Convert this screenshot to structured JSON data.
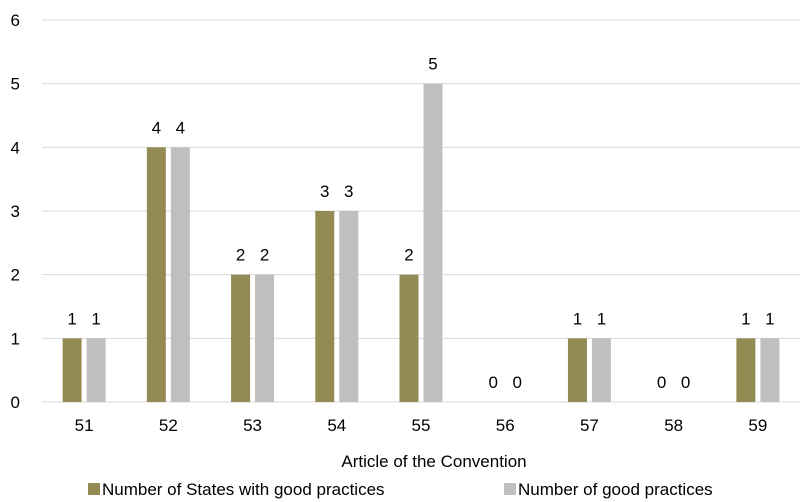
{
  "chart_data": {
    "type": "bar",
    "title": "",
    "xlabel": "Article of the Convention",
    "ylabel": "",
    "ylim": [
      0,
      6
    ],
    "yticks": [
      0,
      1,
      2,
      3,
      4,
      5,
      6
    ],
    "grid": true,
    "legend_position": "bottom",
    "categories": [
      "51",
      "52",
      "53",
      "54",
      "55",
      "56",
      "57",
      "58",
      "59"
    ],
    "series": [
      {
        "name": "Number of States with good practices",
        "color": "#948a54",
        "values": [
          1,
          4,
          2,
          3,
          2,
          0,
          1,
          0,
          1
        ]
      },
      {
        "name": "Number of good practices",
        "color": "#bfbfbf",
        "values": [
          1,
          4,
          2,
          3,
          5,
          0,
          1,
          0,
          1
        ]
      }
    ]
  }
}
